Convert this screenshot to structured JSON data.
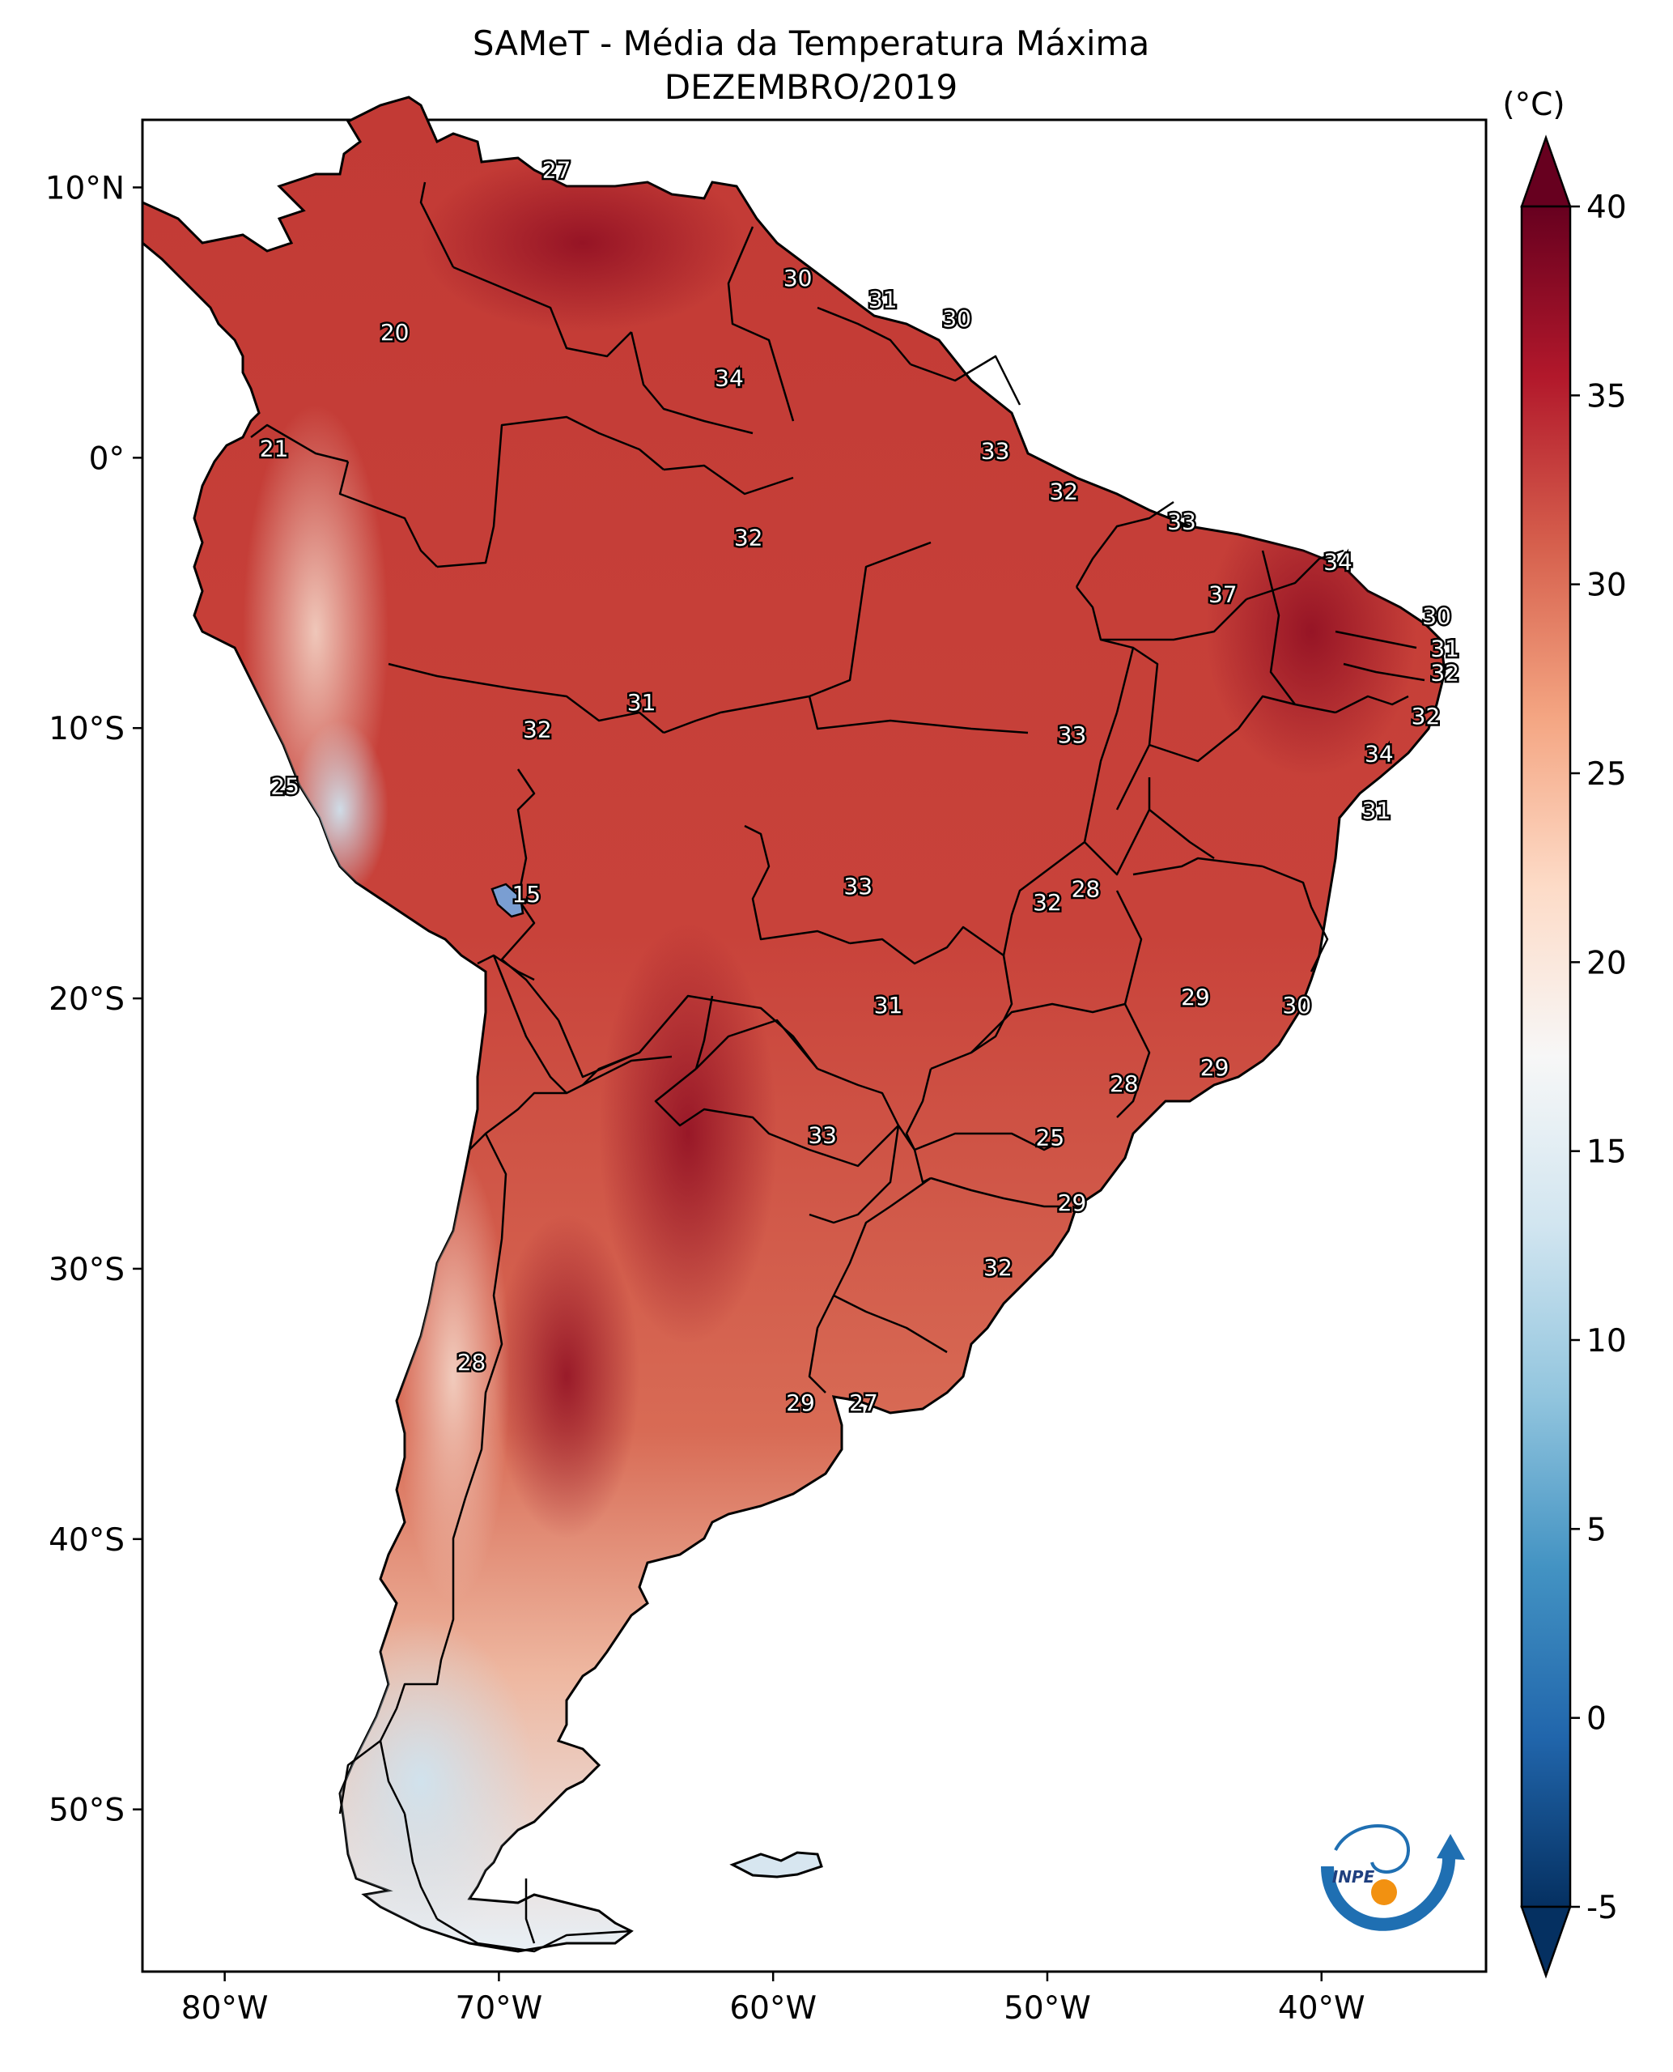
{
  "title": "SAMeT - Média da Temperatura Máxima",
  "subtitle": "DEZEMBRO/2019",
  "colorbar": {
    "unit_label": "(°C)",
    "range": [
      -5,
      40
    ],
    "ticks": [
      "40",
      "35",
      "30",
      "25",
      "20",
      "15",
      "10",
      "5",
      "0",
      "-5"
    ],
    "colors": [
      "#053061",
      "#2166ac",
      "#4393c3",
      "#92c5de",
      "#d1e5f0",
      "#f7f7f7",
      "#fddbc7",
      "#f4a582",
      "#d6604d",
      "#b2182b",
      "#67001f"
    ]
  },
  "axes": {
    "lon_ticks": [
      "80°W",
      "70°W",
      "60°W",
      "50°W",
      "40°W"
    ],
    "lat_ticks": [
      "10°N",
      "0°",
      "10°S",
      "20°S",
      "30°S",
      "40°S",
      "50°S"
    ]
  },
  "map_labels": [
    {
      "text": "27",
      "lon": -67.9,
      "lat": 10.6
    },
    {
      "text": "20",
      "lon": -73.8,
      "lat": 4.6
    },
    {
      "text": "30",
      "lon": -59.1,
      "lat": 6.6
    },
    {
      "text": "31",
      "lon": -56.0,
      "lat": 5.8
    },
    {
      "text": "30",
      "lon": -53.3,
      "lat": 5.1
    },
    {
      "text": "34",
      "lon": -61.6,
      "lat": 2.9
    },
    {
      "text": "21",
      "lon": -78.2,
      "lat": 0.3
    },
    {
      "text": "33",
      "lon": -51.9,
      "lat": 0.2
    },
    {
      "text": "32",
      "lon": -49.4,
      "lat": -1.3
    },
    {
      "text": "32",
      "lon": -60.9,
      "lat": -3.0
    },
    {
      "text": "33",
      "lon": -45.1,
      "lat": -2.4
    },
    {
      "text": "34",
      "lon": -39.4,
      "lat": -3.9
    },
    {
      "text": "37",
      "lon": -43.6,
      "lat": -5.1
    },
    {
      "text": "30",
      "lon": -35.8,
      "lat": -5.9
    },
    {
      "text": "31",
      "lon": -35.5,
      "lat": -7.1
    },
    {
      "text": "32",
      "lon": -35.5,
      "lat": -8.0
    },
    {
      "text": "31",
      "lon": -64.8,
      "lat": -9.1
    },
    {
      "text": "32",
      "lon": -68.6,
      "lat": -10.1
    },
    {
      "text": "33",
      "lon": -49.1,
      "lat": -10.3
    },
    {
      "text": "32",
      "lon": -36.2,
      "lat": -9.6
    },
    {
      "text": "34",
      "lon": -37.9,
      "lat": -11.0
    },
    {
      "text": "25",
      "lon": -77.8,
      "lat": -12.2
    },
    {
      "text": "31",
      "lon": -38.0,
      "lat": -13.1
    },
    {
      "text": "15",
      "lon": -69.0,
      "lat": -16.2
    },
    {
      "text": "33",
      "lon": -56.9,
      "lat": -15.9
    },
    {
      "text": "28",
      "lon": -48.6,
      "lat": -16.0
    },
    {
      "text": "32",
      "lon": -50.0,
      "lat": -16.5
    },
    {
      "text": "29",
      "lon": -44.6,
      "lat": -20.0
    },
    {
      "text": "30",
      "lon": -40.9,
      "lat": -20.3
    },
    {
      "text": "31",
      "lon": -55.8,
      "lat": -20.3
    },
    {
      "text": "29",
      "lon": -43.9,
      "lat": -22.6
    },
    {
      "text": "28",
      "lon": -47.2,
      "lat": -23.2
    },
    {
      "text": "33",
      "lon": -58.2,
      "lat": -25.1
    },
    {
      "text": "25",
      "lon": -49.9,
      "lat": -25.2
    },
    {
      "text": "29",
      "lon": -49.1,
      "lat": -27.6
    },
    {
      "text": "32",
      "lon": -51.8,
      "lat": -30.0
    },
    {
      "text": "28",
      "lon": -71.0,
      "lat": -33.5
    },
    {
      "text": "29",
      "lon": -59.0,
      "lat": -35.0
    },
    {
      "text": "27",
      "lon": -56.7,
      "lat": -35.0
    }
  ],
  "logo": {
    "text": "INPE"
  }
}
